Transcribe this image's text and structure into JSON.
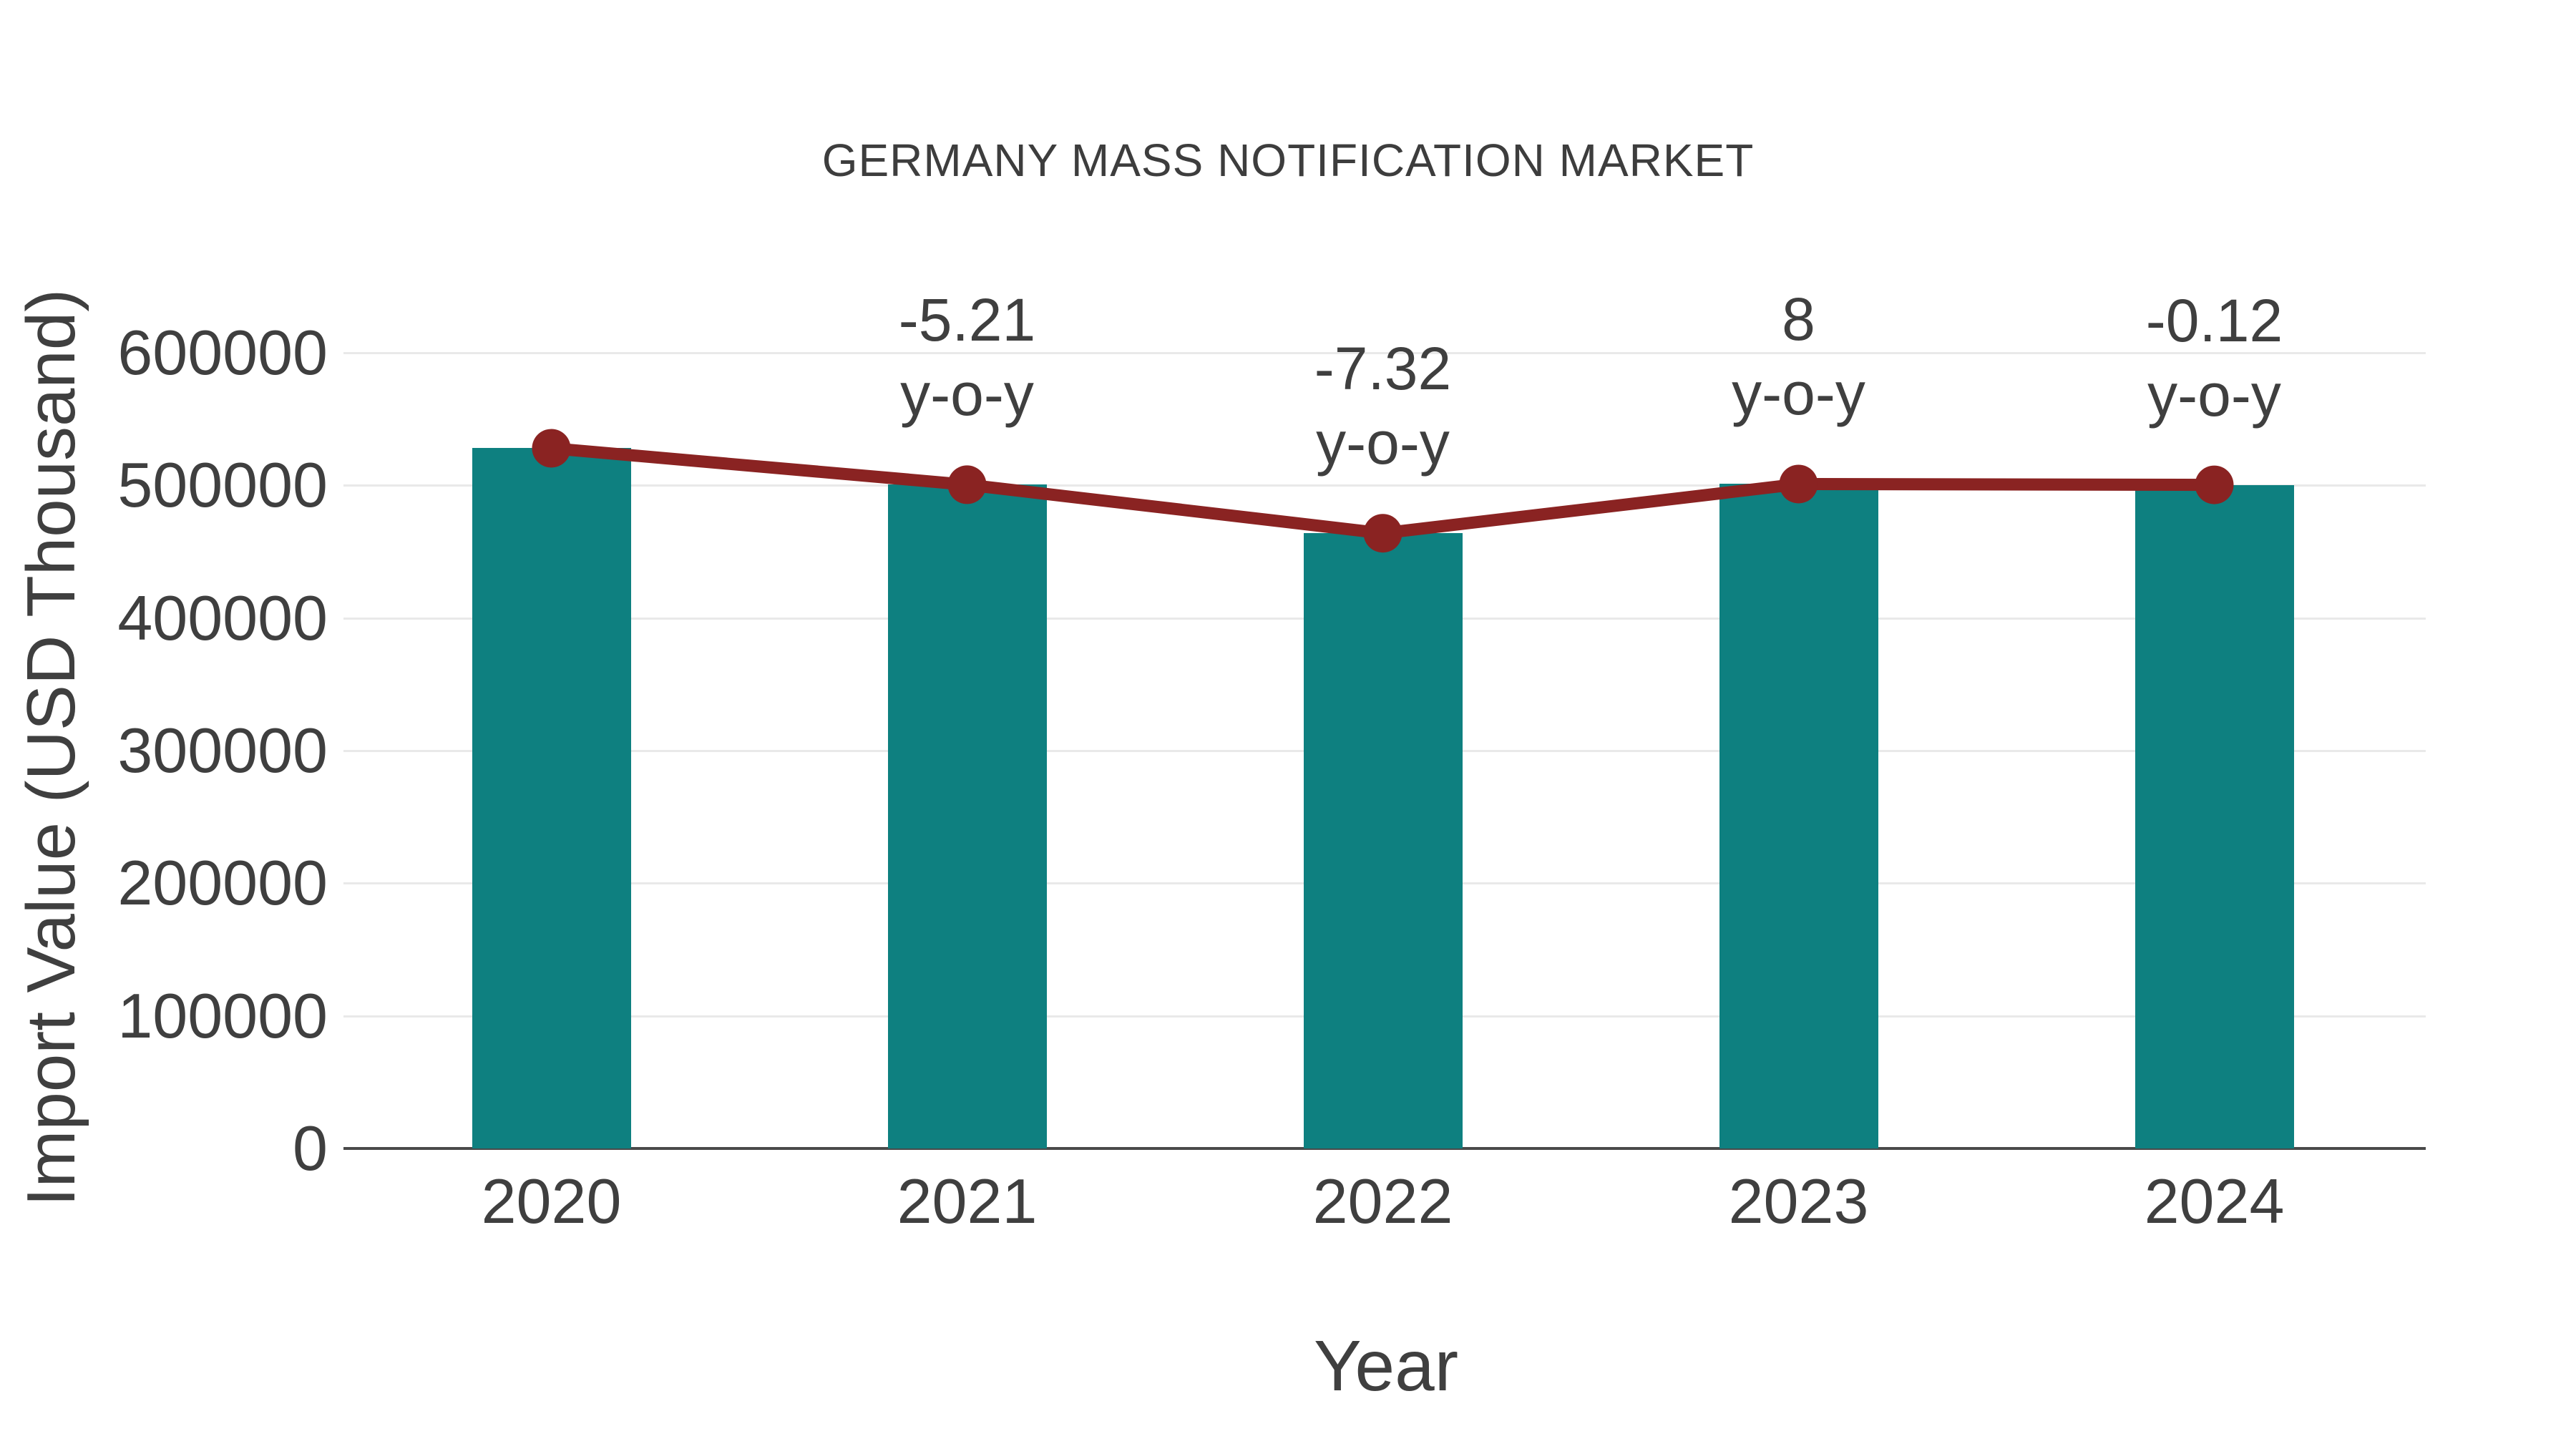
{
  "page": {
    "background": "#FFFFFF"
  },
  "chart": {
    "title": "GERMANY MASS NOTIFICATION MARKET",
    "x_axis_title": "Year",
    "y_axis_title": "Import Value (USD Thousand)"
  },
  "chart_data": {
    "type": "bar",
    "title": "GERMANY MASS NOTIFICATION MARKET",
    "xlabel": "Year",
    "ylabel": "Import Value (USD Thousand)",
    "categories": [
      "2020",
      "2021",
      "2022",
      "2023",
      "2024"
    ],
    "series": [
      {
        "name": "Import Value bars",
        "type": "bar",
        "color": "#0E8080",
        "values": [
          528000,
          500500,
          463900,
          501000,
          500400
        ]
      },
      {
        "name": "y-o-y trend line",
        "type": "line",
        "color": "#8A2322",
        "values": [
          528000,
          500500,
          463900,
          501000,
          500400
        ]
      }
    ],
    "annotations": [
      {
        "category": "2021",
        "lines": [
          "-5.21",
          "y-o-y"
        ]
      },
      {
        "category": "2022",
        "lines": [
          "-7.32",
          "y-o-y"
        ]
      },
      {
        "category": "2023",
        "lines": [
          "8",
          "y-o-y"
        ]
      },
      {
        "category": "2024",
        "lines": [
          "-0.12",
          "y-o-y"
        ]
      }
    ],
    "ylim": [
      0,
      600000
    ],
    "yticks": [
      0,
      100000,
      200000,
      300000,
      400000,
      500000,
      600000
    ],
    "grid": "horizontal",
    "legend": "none",
    "colors": {
      "bar": "#0E8080",
      "line": "#8A2322",
      "grid": "#E9E9E9",
      "axis": "#4A4A4A",
      "text": "#3F3F3F"
    }
  }
}
